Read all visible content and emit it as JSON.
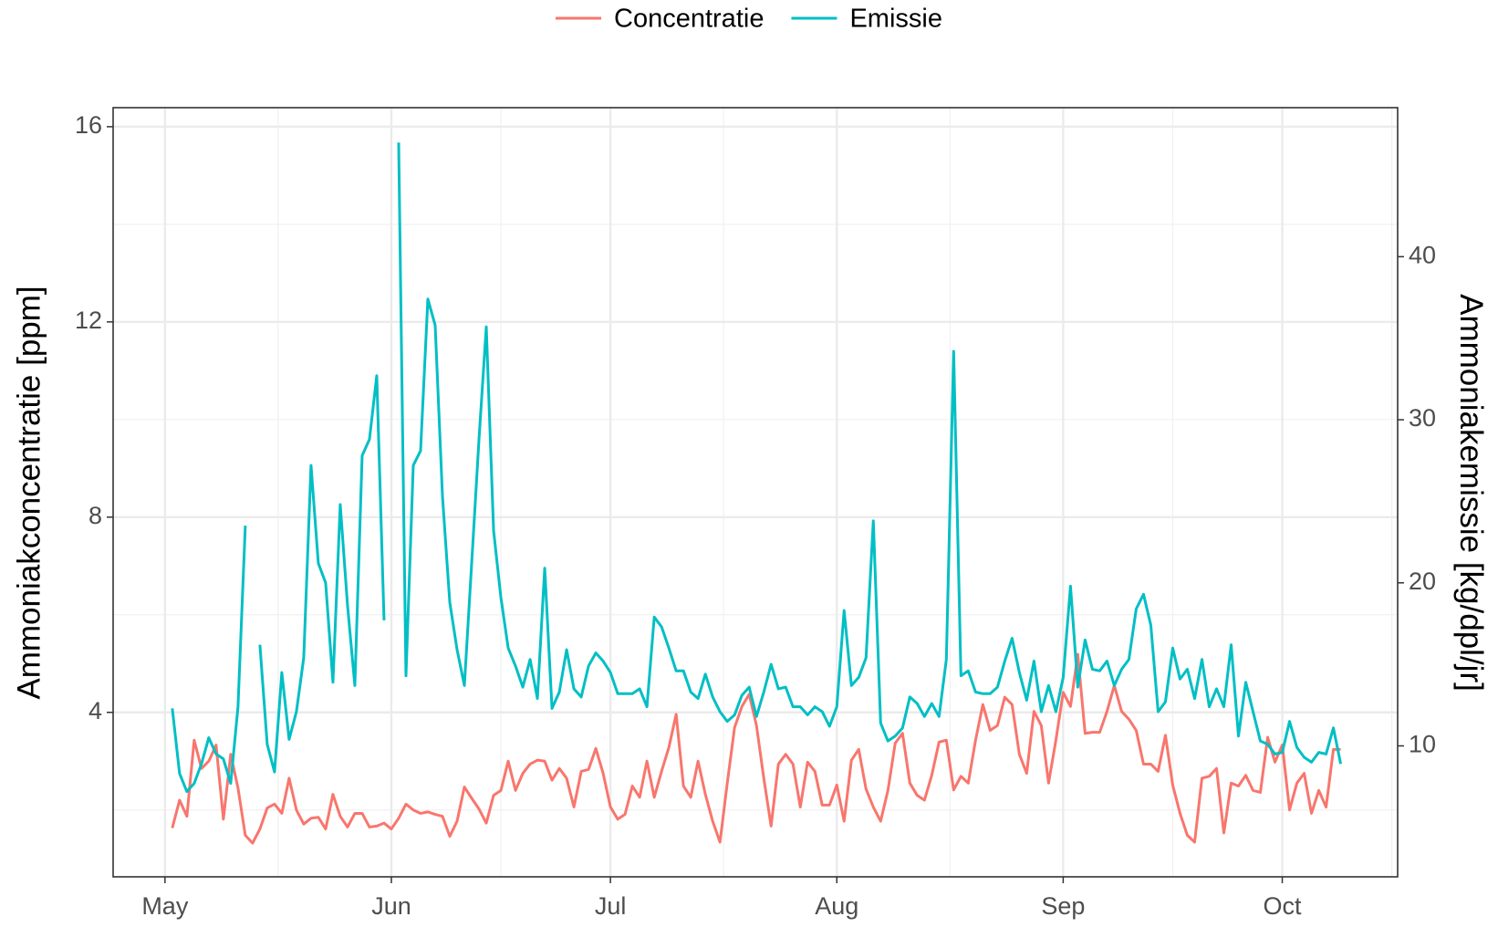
{
  "chart_data": {
    "type": "line",
    "legend": "top",
    "grid": true,
    "ylabel": "Ammoniakconcentratie [ppm]",
    "y2label": "Ammoniakemissie [kg/dpl/jr]",
    "xlim": [
      -7.1,
      168.8
    ],
    "xticks": [
      {
        "value": 0,
        "label": "May"
      },
      {
        "value": 31,
        "label": "Jun"
      },
      {
        "value": 61,
        "label": "Jul"
      },
      {
        "value": 92,
        "label": "Aug"
      },
      {
        "value": 123,
        "label": "Sep"
      },
      {
        "value": 153,
        "label": "Oct"
      }
    ],
    "ylim": [
      0.63,
      16.39
    ],
    "yticks": [
      4,
      8,
      12,
      16
    ],
    "y2lim": [
      1.97,
      49.14
    ],
    "y2ticks": [
      10,
      20,
      30,
      40
    ],
    "x": [
      1,
      2,
      3,
      4,
      5,
      6,
      7,
      8,
      9,
      10,
      11,
      12,
      13,
      14,
      15,
      16,
      17,
      18,
      19,
      20,
      21,
      22,
      23,
      24,
      25,
      26,
      27,
      28,
      29,
      30,
      31,
      32,
      33,
      34,
      35,
      36,
      37,
      38,
      39,
      40,
      41,
      42,
      43,
      44,
      45,
      46,
      47,
      48,
      49,
      50,
      51,
      52,
      53,
      54,
      55,
      56,
      57,
      58,
      59,
      60,
      61,
      62,
      63,
      64,
      65,
      66,
      67,
      68,
      69,
      70,
      71,
      72,
      73,
      74,
      75,
      76,
      77,
      78,
      79,
      80,
      81,
      82,
      83,
      84,
      85,
      86,
      87,
      88,
      89,
      90,
      91,
      92,
      93,
      94,
      95,
      96,
      97,
      98,
      99,
      100,
      101,
      102,
      103,
      104,
      105,
      106,
      107,
      108,
      109,
      110,
      111,
      112,
      113,
      114,
      115,
      116,
      117,
      118,
      119,
      120,
      121,
      122,
      123,
      124,
      125,
      126,
      127,
      128,
      129,
      130,
      131,
      132,
      133,
      134,
      135,
      136,
      137,
      138,
      139,
      140,
      141,
      142,
      143,
      144,
      145,
      146,
      147,
      148,
      149,
      150,
      151,
      152,
      153,
      154,
      155,
      156,
      157,
      158,
      159,
      160,
      161
    ],
    "series": [
      {
        "name": "Concentratie",
        "color": "#F8766D",
        "values": [
          1.63,
          2.2,
          1.87,
          3.43,
          2.85,
          3.0,
          3.33,
          1.81,
          3.14,
          2.45,
          1.48,
          1.32,
          1.61,
          2.04,
          2.12,
          1.93,
          2.65,
          2.0,
          1.71,
          1.83,
          1.85,
          1.61,
          2.32,
          1.87,
          1.65,
          1.93,
          1.93,
          1.65,
          1.67,
          1.73,
          1.61,
          1.83,
          2.12,
          2.0,
          1.93,
          1.96,
          1.91,
          1.87,
          1.46,
          1.77,
          2.47,
          2.24,
          2.02,
          1.73,
          2.3,
          2.4,
          3.0,
          2.4,
          2.75,
          2.94,
          3.02,
          3.0,
          2.61,
          2.85,
          2.65,
          2.06,
          2.79,
          2.83,
          3.26,
          2.75,
          2.06,
          1.81,
          1.91,
          2.49,
          2.26,
          3.0,
          2.26,
          2.79,
          3.28,
          3.96,
          2.49,
          2.26,
          3.0,
          2.32,
          1.77,
          1.34,
          2.55,
          3.69,
          4.12,
          4.37,
          3.73,
          2.65,
          1.67,
          2.94,
          3.14,
          2.94,
          2.06,
          2.98,
          2.79,
          2.1,
          2.1,
          2.51,
          1.77,
          3.02,
          3.24,
          2.43,
          2.06,
          1.77,
          2.4,
          3.37,
          3.57,
          2.55,
          2.3,
          2.2,
          2.71,
          3.39,
          3.43,
          2.41,
          2.69,
          2.55,
          3.43,
          4.16,
          3.63,
          3.73,
          4.31,
          4.16,
          3.14,
          2.75,
          4.02,
          3.73,
          2.55,
          3.43,
          4.41,
          4.12,
          5.19,
          3.57,
          3.59,
          3.59,
          4.02,
          4.55,
          4.02,
          3.86,
          3.63,
          2.94,
          2.94,
          2.79,
          3.53,
          2.51,
          1.93,
          1.48,
          1.34,
          2.65,
          2.69,
          2.85,
          1.53,
          2.55,
          2.49,
          2.71,
          2.4,
          2.36,
          3.49,
          2.98,
          3.33,
          2.0,
          2.55,
          2.75,
          1.93,
          2.4,
          2.06,
          3.24,
          3.24
        ]
      },
      {
        "name": "Emissie",
        "color": "#00BFC4",
        "axis": "y2",
        "values": [
          12.3,
          8.3,
          7.2,
          7.7,
          8.9,
          10.5,
          9.5,
          9.2,
          7.7,
          12.4,
          23.5,
          null,
          16.2,
          10.1,
          8.4,
          14.5,
          10.4,
          12.1,
          15.4,
          27.2,
          21.2,
          20.0,
          13.9,
          24.8,
          18.6,
          13.7,
          27.8,
          28.8,
          32.7,
          17.7,
          null,
          47.0,
          14.3,
          27.2,
          28.1,
          37.4,
          35.8,
          25.3,
          18.8,
          15.9,
          13.7,
          21.2,
          28.8,
          35.7,
          23.2,
          19.1,
          16.0,
          14.9,
          13.6,
          15.3,
          12.9,
          20.9,
          12.3,
          13.3,
          15.9,
          13.5,
          13.0,
          14.9,
          15.7,
          15.2,
          14.5,
          13.2,
          13.2,
          13.2,
          13.5,
          12.4,
          17.9,
          17.3,
          16.0,
          14.6,
          14.6,
          13.3,
          12.9,
          14.4,
          13.0,
          12.1,
          11.5,
          11.9,
          13.1,
          13.6,
          11.8,
          13.3,
          15.0,
          13.5,
          13.6,
          12.4,
          12.4,
          11.9,
          12.4,
          12.1,
          11.2,
          12.4,
          18.3,
          13.7,
          14.2,
          15.4,
          23.8,
          11.4,
          10.3,
          10.6,
          11.1,
          13.0,
          12.6,
          11.8,
          12.6,
          11.8,
          15.3,
          34.2,
          14.3,
          14.6,
          13.3,
          13.2,
          13.2,
          13.6,
          15.2,
          16.6,
          14.5,
          12.8,
          15.2,
          12.1,
          13.7,
          12.1,
          14.2,
          19.8,
          13.6,
          16.5,
          14.7,
          14.6,
          15.2,
          13.7,
          14.7,
          15.3,
          18.4,
          19.3,
          17.4,
          12.1,
          12.7,
          16.0,
          14.1,
          14.7,
          12.9,
          15.3,
          12.4,
          13.5,
          12.4,
          16.2,
          10.6,
          13.9,
          12.1,
          10.3,
          10.1,
          9.5,
          9.6,
          11.5,
          9.9,
          9.3,
          9.0,
          9.6,
          9.5,
          11.1,
          8.9
        ]
      }
    ]
  }
}
